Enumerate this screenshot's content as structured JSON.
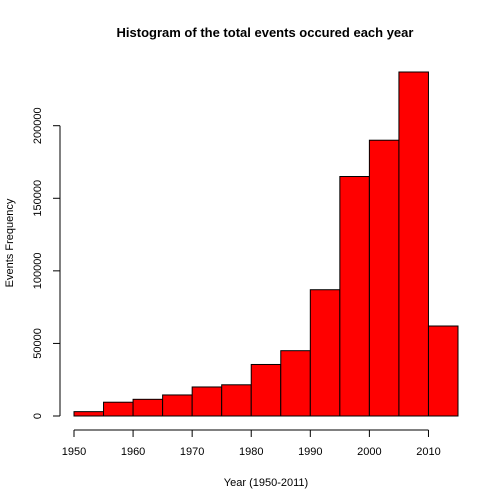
{
  "chart_data": {
    "type": "bar",
    "title": "Histogram of the total events occured each year",
    "xlabel": "Year (1950-2011)",
    "ylabel": "Events Frequency",
    "bins": [
      {
        "start": 1950,
        "end": 1955,
        "value": 3000
      },
      {
        "start": 1955,
        "end": 1960,
        "value": 9500
      },
      {
        "start": 1960,
        "end": 1965,
        "value": 11500
      },
      {
        "start": 1965,
        "end": 1970,
        "value": 14500
      },
      {
        "start": 1970,
        "end": 1975,
        "value": 20000
      },
      {
        "start": 1975,
        "end": 1980,
        "value": 21500
      },
      {
        "start": 1980,
        "end": 1985,
        "value": 35500
      },
      {
        "start": 1985,
        "end": 1990,
        "value": 45000
      },
      {
        "start": 1990,
        "end": 1995,
        "value": 87000
      },
      {
        "start": 1995,
        "end": 2000,
        "value": 165000
      },
      {
        "start": 2000,
        "end": 2005,
        "value": 190000
      },
      {
        "start": 2005,
        "end": 2010,
        "value": 237000
      },
      {
        "start": 2010,
        "end": 2015,
        "value": 62000
      }
    ],
    "xlim": [
      1950,
      2015
    ],
    "ylim": [
      0,
      237000
    ],
    "x_ticks": [
      1950,
      1960,
      1970,
      1980,
      1990,
      2000,
      2010
    ],
    "y_ticks": [
      0,
      50000,
      100000,
      150000,
      200000
    ],
    "x_tick_labels": [
      "1950",
      "1960",
      "1970",
      "1980",
      "1990",
      "2000",
      "2010"
    ],
    "y_tick_labels": [
      "0",
      "50000",
      "100000",
      "150000",
      "200000"
    ],
    "bar_color": "#ff0000",
    "grid": false,
    "legend": "none"
  }
}
